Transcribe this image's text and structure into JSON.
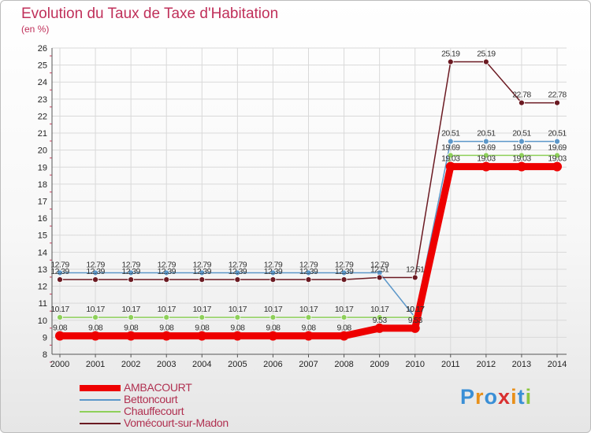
{
  "title": "Evolution du Taux de Taxe d'Habitation",
  "unit": "(en %)",
  "logo": "Proxiti",
  "chart_data": {
    "type": "line",
    "title": "Evolution du Taux de Taxe d'Habitation",
    "ylabel": "(en %)",
    "x": [
      "2000",
      "2001",
      "2002",
      "2003",
      "2004",
      "2005",
      "2006",
      "2007",
      "2008",
      "2009",
      "2010",
      "2011",
      "2012",
      "2013",
      "2014"
    ],
    "ylim": [
      8,
      26
    ],
    "yticks": [
      8,
      9,
      10,
      11,
      12,
      13,
      14,
      15,
      16,
      17,
      18,
      19,
      20,
      21,
      22,
      23,
      24,
      25,
      26
    ],
    "grid": true,
    "legend_position": "bottom-left",
    "series": [
      {
        "name": "AMBACOURT",
        "color": "#ee0000",
        "values": [
          9.08,
          9.08,
          9.08,
          9.08,
          9.08,
          9.08,
          9.08,
          9.08,
          9.08,
          9.53,
          9.53,
          19.03,
          19.03,
          19.03,
          19.03
        ],
        "labels": [
          "9.08",
          "9.08",
          "9.08",
          "9.08",
          "9.08",
          "9.08",
          "9.08",
          "9.08",
          "9.08",
          "9.53",
          "9.53",
          "19.03",
          "19.03",
          "19.03",
          "19.03"
        ]
      },
      {
        "name": "Bettoncourt",
        "color": "#5c97c9",
        "values": [
          12.79,
          12.79,
          12.79,
          12.79,
          12.79,
          12.79,
          12.79,
          12.79,
          12.79,
          12.79,
          10.17,
          20.51,
          20.51,
          20.51,
          20.51
        ],
        "labels": [
          "12.79",
          "12.79",
          "12.79",
          "12.79",
          "12.79",
          "12.79",
          "12.79",
          "12.79",
          "12.79",
          "12.79",
          "10.17",
          "20.51",
          "20.51",
          "20.51",
          "20.51"
        ]
      },
      {
        "name": "Chauffecourt",
        "color": "#8ed05a",
        "values": [
          10.17,
          10.17,
          10.17,
          10.17,
          10.17,
          10.17,
          10.17,
          10.17,
          10.17,
          10.17,
          10.17,
          19.69,
          19.69,
          19.69,
          19.69
        ],
        "labels": [
          "10.17",
          "10.17",
          "10.17",
          "10.17",
          "10.17",
          "10.17",
          "10.17",
          "10.17",
          "10.17",
          "10.17",
          "10.17",
          "19.69",
          "19.69",
          "19.69",
          "19.69"
        ]
      },
      {
        "name": "Vomécourt-sur-Madon",
        "color": "#6b1a22",
        "values": [
          12.39,
          12.39,
          12.39,
          12.39,
          12.39,
          12.39,
          12.39,
          12.39,
          12.39,
          12.51,
          12.51,
          25.19,
          25.19,
          22.78,
          22.78
        ],
        "labels": [
          "12.39",
          "12.39",
          "12.39",
          "12.39",
          "12.39",
          "12.39",
          "12.39",
          "12.39",
          "12.39",
          "12.51",
          "12.51",
          "25.19",
          "25.19",
          "22.78",
          "22.78"
        ]
      }
    ]
  }
}
